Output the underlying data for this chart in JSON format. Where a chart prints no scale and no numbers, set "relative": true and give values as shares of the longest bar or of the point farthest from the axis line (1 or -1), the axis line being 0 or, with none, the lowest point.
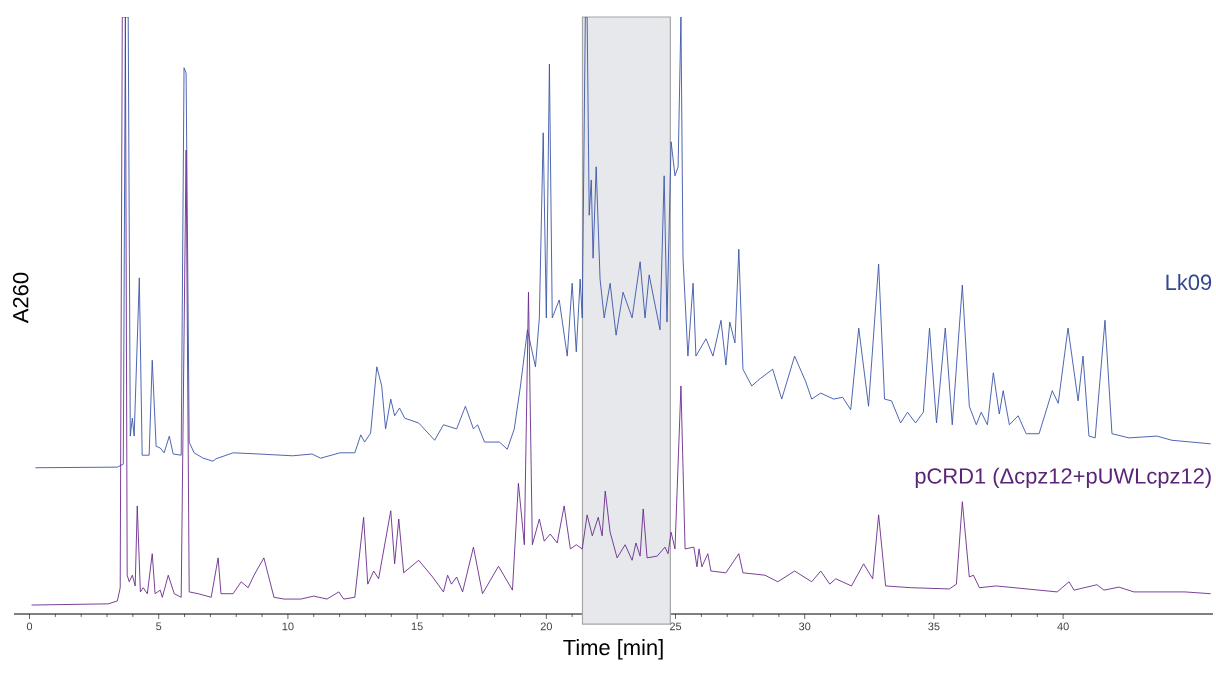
{
  "chart_data": {
    "type": "line",
    "relative": true,
    "xlabel": "Time [min]",
    "ylabel": "A260",
    "xlim": [
      -0.6,
      45.8
    ],
    "xticks": [
      0,
      5,
      10,
      15,
      20,
      25,
      30,
      35,
      40
    ],
    "bands": [
      {
        "axis": "x",
        "from": 21.4,
        "to": 24.8,
        "color": "#e6e8ec"
      }
    ],
    "series": [
      {
        "name": "Lk09",
        "color": "#3a55a8",
        "x": [
          0.23,
          3.4,
          3.63,
          3.71,
          3.82,
          3.9,
          3.98,
          4.05,
          4.25,
          4.36,
          4.63,
          4.75,
          4.9,
          5.06,
          5.21,
          5.41,
          5.56,
          5.87,
          5.98,
          6.06,
          6.18,
          6.37,
          6.72,
          7.1,
          7.22,
          7.88,
          8.88,
          10.19,
          10.93,
          11.27,
          12.01,
          12.59,
          12.82,
          12.97,
          13.2,
          13.44,
          13.63,
          13.78,
          13.98,
          14.13,
          14.32,
          14.52,
          15.06,
          15.68,
          16.02,
          16.53,
          16.87,
          17.18,
          17.34,
          17.61,
          18.19,
          18.49,
          18.76,
          19.0,
          19.27,
          19.58,
          19.73,
          19.88,
          20.0,
          20.12,
          20.23,
          20.5,
          20.81,
          21.0,
          21.16,
          21.31,
          21.39,
          21.51,
          21.58,
          21.66,
          21.74,
          21.81,
          21.93,
          22.08,
          22.24,
          22.47,
          22.7,
          22.97,
          23.32,
          23.63,
          23.82,
          23.98,
          24.17,
          24.4,
          24.56,
          24.67,
          24.83,
          24.98,
          25.1,
          25.21,
          25.29,
          25.48,
          25.68,
          25.79,
          26.18,
          26.45,
          26.76,
          26.95,
          27.1,
          27.3,
          27.45,
          27.61,
          27.95,
          28.3,
          28.76,
          29.11,
          29.61,
          30.04,
          30.27,
          30.62,
          31.12,
          31.47,
          31.78,
          32.09,
          32.47,
          32.86,
          33.09,
          33.36,
          33.71,
          33.98,
          34.29,
          34.59,
          34.83,
          35.1,
          35.44,
          35.71,
          36.1,
          36.37,
          36.64,
          36.83,
          37.07,
          37.3,
          37.53,
          37.68,
          37.92,
          38.26,
          38.57,
          39.07,
          39.58,
          39.81,
          40.19,
          40.58,
          40.77,
          41.0,
          41.24,
          41.62,
          41.89,
          42.55,
          43.63,
          44.21,
          45.71
        ],
        "values": [
          0.245,
          0.246,
          0.251,
          1,
          1,
          0.298,
          0.328,
          0.298,
          0.563,
          0.266,
          0.266,
          0.425,
          0.281,
          0.278,
          0.27,
          0.298,
          0.268,
          0.266,
          0.915,
          0.906,
          0.288,
          0.27,
          0.261,
          0.256,
          0.26,
          0.27,
          0.268,
          0.265,
          0.268,
          0.261,
          0.27,
          0.27,
          0.3,
          0.288,
          0.303,
          0.414,
          0.382,
          0.31,
          0.36,
          0.332,
          0.345,
          0.328,
          0.32,
          0.291,
          0.317,
          0.31,
          0.348,
          0.31,
          0.317,
          0.288,
          0.288,
          0.276,
          0.31,
          0.382,
          0.476,
          0.414,
          0.496,
          0.806,
          0.496,
          0.921,
          0.496,
          0.526,
          0.432,
          0.554,
          0.439,
          0.561,
          0.496,
          1,
          1,
          0.668,
          0.727,
          0.596,
          0.749,
          0.561,
          0.496,
          0.554,
          0.467,
          0.539,
          0.496,
          0.59,
          0.496,
          0.568,
          0.526,
          0.476,
          0.734,
          0.489,
          0.791,
          0.734,
          0.749,
          1,
          0.596,
          0.432,
          0.554,
          0.432,
          0.461,
          0.432,
          0.492,
          0.417,
          0.489,
          0.454,
          0.611,
          0.41,
          0.382,
          0.395,
          0.41,
          0.36,
          0.432,
          0.389,
          0.36,
          0.37,
          0.36,
          0.363,
          0.342,
          0.479,
          0.348,
          0.586,
          0.36,
          0.357,
          0.32,
          0.338,
          0.32,
          0.338,
          0.479,
          0.32,
          0.479,
          0.317,
          0.551,
          0.348,
          0.317,
          0.338,
          0.317,
          0.404,
          0.335,
          0.374,
          0.317,
          0.332,
          0.302,
          0.302,
          0.374,
          0.353,
          0.479,
          0.357,
          0.432,
          0.298,
          0.295,
          0.492,
          0.302,
          0.295,
          0.298,
          0.291,
          0.285
        ]
      },
      {
        "name": "pCRD1 (Δcpz12+pUWLcpz12)",
        "color": "#6a2a8c",
        "x": [
          0.08,
          3.05,
          3.4,
          3.51,
          3.59,
          3.71,
          3.78,
          3.86,
          3.98,
          4.09,
          4.17,
          4.29,
          4.4,
          4.56,
          4.75,
          4.86,
          5.06,
          5.14,
          5.37,
          5.6,
          5.87,
          6.06,
          6.18,
          6.53,
          7.03,
          7.3,
          7.41,
          7.88,
          8.19,
          8.46,
          8.69,
          9.07,
          9.46,
          9.85,
          10.5,
          11.0,
          11.51,
          11.97,
          12.16,
          12.59,
          12.93,
          13.09,
          13.32,
          13.51,
          13.98,
          14.13,
          14.29,
          14.48,
          15.06,
          15.6,
          16.02,
          16.18,
          16.33,
          16.53,
          16.76,
          17.18,
          17.53,
          18.15,
          18.69,
          18.92,
          19.15,
          19.31,
          19.46,
          19.73,
          19.92,
          20.15,
          20.42,
          20.69,
          20.93,
          21.16,
          21.39,
          21.58,
          21.78,
          22.01,
          22.16,
          22.28,
          22.47,
          22.74,
          23.05,
          23.32,
          23.47,
          23.63,
          23.75,
          23.9,
          24.29,
          24.59,
          24.71,
          24.83,
          24.98,
          25.21,
          25.37,
          25.71,
          25.83,
          25.91,
          26.02,
          26.25,
          26.37,
          26.95,
          27.45,
          27.61,
          28.46,
          28.96,
          29.61,
          30.27,
          30.62,
          30.97,
          31.2,
          31.81,
          32.28,
          32.63,
          32.86,
          33.13,
          34.13,
          35.6,
          35.87,
          36.1,
          36.37,
          36.53,
          36.76,
          37.41,
          39.77,
          40.23,
          40.42,
          41.31,
          41.58,
          42.16,
          42.74,
          44.71,
          45.71
        ],
        "values": [
          0.015,
          0.017,
          0.022,
          0.044,
          1,
          1,
          0.065,
          0.054,
          0.065,
          0.047,
          0.181,
          0.037,
          0.044,
          0.034,
          0.101,
          0.034,
          0.04,
          0.028,
          0.065,
          0.034,
          0.028,
          0.777,
          0.037,
          0.034,
          0.028,
          0.094,
          0.034,
          0.034,
          0.054,
          0.044,
          0.065,
          0.094,
          0.028,
          0.025,
          0.025,
          0.03,
          0.025,
          0.037,
          0.025,
          0.028,
          0.162,
          0.05,
          0.072,
          0.059,
          0.173,
          0.084,
          0.159,
          0.069,
          0.09,
          0.062,
          0.037,
          0.065,
          0.05,
          0.062,
          0.037,
          0.112,
          0.034,
          0.08,
          0.04,
          0.219,
          0.116,
          0.539,
          0.116,
          0.159,
          0.122,
          0.134,
          0.119,
          0.181,
          0.109,
          0.116,
          0.109,
          0.166,
          0.131,
          0.162,
          0.131,
          0.206,
          0.137,
          0.094,
          0.116,
          0.09,
          0.119,
          0.097,
          0.176,
          0.094,
          0.097,
          0.112,
          0.101,
          0.137,
          0.109,
          0.382,
          0.109,
          0.112,
          0.079,
          0.109,
          0.079,
          0.101,
          0.072,
          0.069,
          0.101,
          0.069,
          0.065,
          0.054,
          0.072,
          0.054,
          0.072,
          0.05,
          0.059,
          0.047,
          0.084,
          0.059,
          0.166,
          0.047,
          0.044,
          0.042,
          0.05,
          0.188,
          0.062,
          0.065,
          0.044,
          0.047,
          0.037,
          0.054,
          0.04,
          0.049,
          0.04,
          0.045,
          0.037,
          0.037,
          0.034
        ]
      }
    ]
  }
}
